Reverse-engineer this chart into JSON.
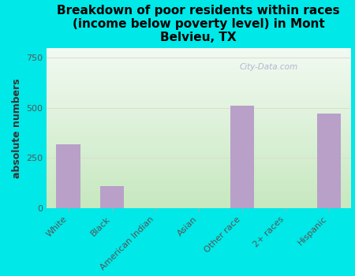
{
  "title": "Breakdown of poor residents within races\n(income below poverty level) in Mont\nBelvieu, TX",
  "ylabel": "absolute numbers",
  "categories": [
    "White",
    "Black",
    "American Indian",
    "Asian",
    "Other race",
    "2+ races",
    "Hispanic"
  ],
  "values": [
    320,
    110,
    0,
    0,
    510,
    0,
    470
  ],
  "bar_color": "#b8a0c8",
  "background_color": "#00e8e8",
  "plot_bg_topleft": "#e8f5e8",
  "plot_bg_bottomright": "#c8e8c0",
  "ylim": [
    0,
    800
  ],
  "yticks": [
    0,
    250,
    500,
    750
  ],
  "grid_color": "#ddddcc",
  "title_fontsize": 11,
  "ylabel_fontsize": 9,
  "tick_fontsize": 8,
  "watermark": "City-Data.com"
}
